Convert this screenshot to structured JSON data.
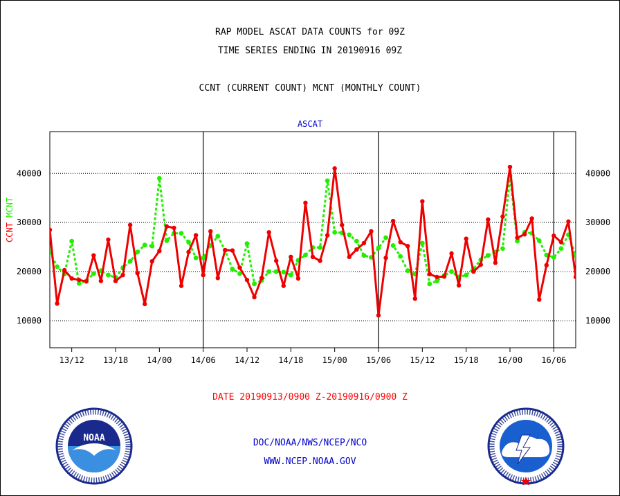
{
  "header": {
    "title_line1": "RAP MODEL ASCAT DATA COUNTS for 09Z",
    "title_line2": "TIME SERIES ENDING IN 20190916 09Z",
    "title_line3": "CCNT (CURRENT COUNT) MCNT (MONTHLY COUNT)"
  },
  "axis_label": {
    "ccnt": "CCNT",
    "mcnt": "MCNT"
  },
  "footer": {
    "date_range": "DATE 20190913/0900 Z-20190916/0900 Z",
    "credit": "DOC/NOAA/NWS/NCEP/NCO",
    "url": "WWW.NCEP.NOAA.GOV"
  },
  "logos": {
    "left": {
      "icon": "noaa-logo",
      "text": "NOAA"
    },
    "right": {
      "icon": "national-weather-service-logo"
    }
  },
  "colors": {
    "ccnt": "#ee0000",
    "mcnt": "#22ee00",
    "label": "#0000cc",
    "axis": "#000000"
  },
  "chart_data": {
    "type": "line",
    "title": "ASCAT",
    "xlabel": "DATE 20190913/0900 Z-20190916/0900 Z",
    "ylabel": "CCNT MCNT",
    "ylim": [
      4500,
      48500
    ],
    "yticks": [
      10000,
      20000,
      30000,
      40000
    ],
    "grid": "horizontal dotted",
    "x_tick_labels": [
      "13/12",
      "13/18",
      "14/00",
      "14/06",
      "14/12",
      "14/18",
      "15/00",
      "15/06",
      "15/12",
      "15/18",
      "16/00",
      "16/06"
    ],
    "x_tick_hours": [
      3,
      9,
      15,
      21,
      27,
      33,
      39,
      45,
      51,
      57,
      63,
      69
    ],
    "day_boundary_hours": [
      21,
      45,
      69
    ],
    "x_range_hours": [
      0,
      72
    ],
    "series": [
      {
        "name": "CCNT",
        "hours": [
          0,
          1,
          2,
          3,
          4,
          5,
          6,
          7,
          8,
          9,
          10,
          11,
          12,
          13,
          14,
          15,
          16,
          17,
          18,
          19,
          20,
          21,
          22,
          23,
          24,
          25,
          26,
          27,
          28,
          29,
          30,
          31,
          32,
          33,
          34,
          35,
          36,
          37,
          38,
          39,
          40,
          41,
          42,
          43,
          44,
          45,
          46,
          47,
          48,
          49,
          50,
          51,
          52,
          53,
          54,
          55,
          56,
          57,
          58,
          59,
          60,
          61,
          62,
          63,
          64,
          65,
          66,
          67,
          68,
          69,
          70,
          71,
          72
        ],
        "values": [
          28500,
          13500,
          20300,
          18600,
          18300,
          18000,
          23300,
          18100,
          26500,
          18100,
          19300,
          29500,
          19700,
          13400,
          22100,
          24200,
          29200,
          28900,
          17100,
          24000,
          27400,
          19300,
          28200,
          18700,
          24400,
          24300,
          20800,
          18300,
          14800,
          18700,
          28000,
          22200,
          17100,
          23000,
          18600,
          34000,
          23000,
          22200,
          27400,
          41000,
          29500,
          23000,
          24500,
          25800,
          28200,
          11100,
          22800,
          30300,
          26000,
          25200,
          14500,
          34300,
          19500,
          18900,
          19000,
          23700,
          17200,
          26700,
          20000,
          21400,
          30600,
          21800,
          31200,
          41300,
          26900,
          27600,
          30800,
          14300,
          21300,
          27300,
          26000,
          30200,
          18900
        ]
      },
      {
        "name": "MCNT",
        "hours": [
          0,
          1,
          2,
          3,
          4,
          5,
          6,
          7,
          8,
          9,
          10,
          11,
          12,
          13,
          14,
          15,
          16,
          17,
          18,
          19,
          20,
          21,
          22,
          23,
          24,
          25,
          26,
          27,
          28,
          29,
          30,
          31,
          32,
          33,
          34,
          35,
          36,
          37,
          38,
          39,
          40,
          41,
          42,
          43,
          44,
          45,
          46,
          47,
          48,
          49,
          50,
          51,
          52,
          53,
          54,
          55,
          56,
          57,
          58,
          59,
          60,
          61,
          62,
          63,
          64,
          65,
          66,
          67,
          68,
          69,
          70,
          71,
          72
        ],
        "values": [
          24000,
          21000,
          19500,
          26200,
          17600,
          18100,
          19600,
          20200,
          19300,
          18800,
          20800,
          22100,
          24000,
          25400,
          25200,
          39000,
          26300,
          27800,
          27800,
          26000,
          22800,
          22800,
          25300,
          27200,
          24300,
          20500,
          19600,
          25700,
          17500,
          18200,
          20000,
          20000,
          19900,
          19300,
          22300,
          23400,
          24900,
          24900,
          38500,
          28000,
          27900,
          27500,
          26200,
          23300,
          22900,
          24800,
          26900,
          25300,
          23100,
          20200,
          19500,
          25800,
          17500,
          18100,
          19200,
          20000,
          18900,
          19300,
          20600,
          22400,
          23300,
          24000,
          24700,
          39500,
          26200,
          28000,
          27800,
          26300,
          23400,
          22900,
          24700,
          27500,
          23200
        ]
      }
    ]
  }
}
